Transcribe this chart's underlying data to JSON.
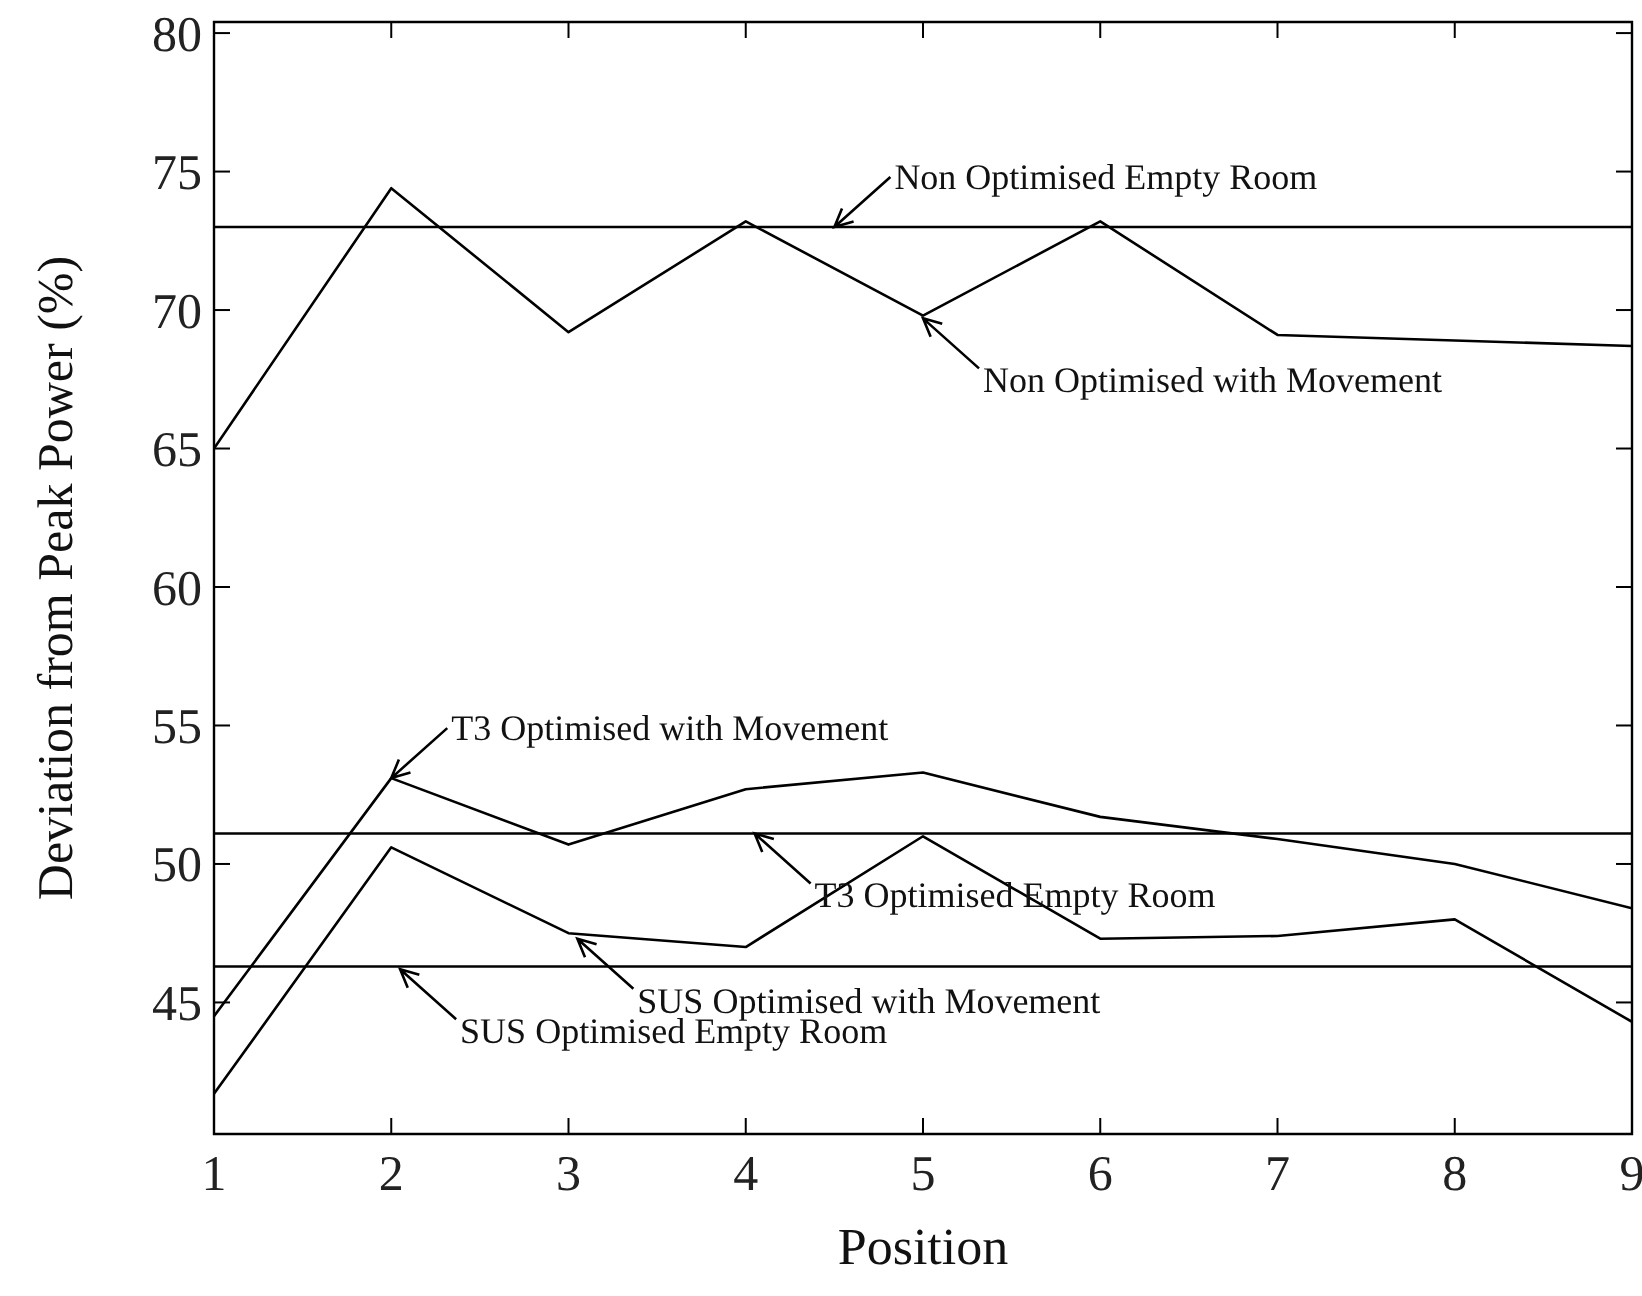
{
  "chart_data": {
    "type": "line",
    "xlabel": "Position",
    "ylabel": "Deviation from Peak Power (%)",
    "x": [
      1,
      2,
      3,
      4,
      5,
      6,
      7,
      8,
      9
    ],
    "series": [
      {
        "color": "#000000",
        "values": [
          65.0,
          74.4,
          69.2,
          73.2,
          69.8,
          73.2,
          69.1,
          68.9,
          68.7
        ]
      },
      {
        "color": "#000000",
        "values": [
          44.5,
          53.1,
          50.7,
          52.7,
          53.3,
          51.7,
          50.9,
          50.0,
          48.4
        ]
      },
      {
        "color": "#000000",
        "values": [
          41.7,
          50.6,
          47.5,
          47.0,
          51.0,
          47.3,
          47.4,
          48.0,
          44.3
        ]
      }
    ],
    "ref_lines": [
      {
        "axis": "y",
        "value": 73.0,
        "color": "#000000"
      },
      {
        "axis": "y",
        "value": 51.1,
        "color": "#000000"
      },
      {
        "axis": "y",
        "value": 46.3,
        "color": "#000000"
      }
    ],
    "annotations": [
      {
        "text": "Non Optimised Empty Room",
        "x": 4.5,
        "y": 73.0
      },
      {
        "text": "Non Optimised with Movement",
        "x": 5,
        "y": 69.7
      },
      {
        "text": "T3 Optimised with Movement",
        "x": 2,
        "y": 53.1
      },
      {
        "text": "T3 Optimised Empty Room",
        "x": 4.05,
        "y": 51.1
      },
      {
        "text": "SUS Optimised with Movement",
        "x": 3.05,
        "y": 47.3
      },
      {
        "text": "SUS Optimised Empty Room",
        "x": 2.05,
        "y": 46.2
      }
    ],
    "xlim": [
      1,
      9
    ],
    "xticks": [
      1,
      2,
      3,
      4,
      5,
      6,
      7,
      8,
      9
    ],
    "ylim": [
      40.25,
      80.4
    ],
    "yticks": [
      45,
      50,
      55,
      60,
      65,
      70,
      75,
      80
    ],
    "grid": false
  }
}
